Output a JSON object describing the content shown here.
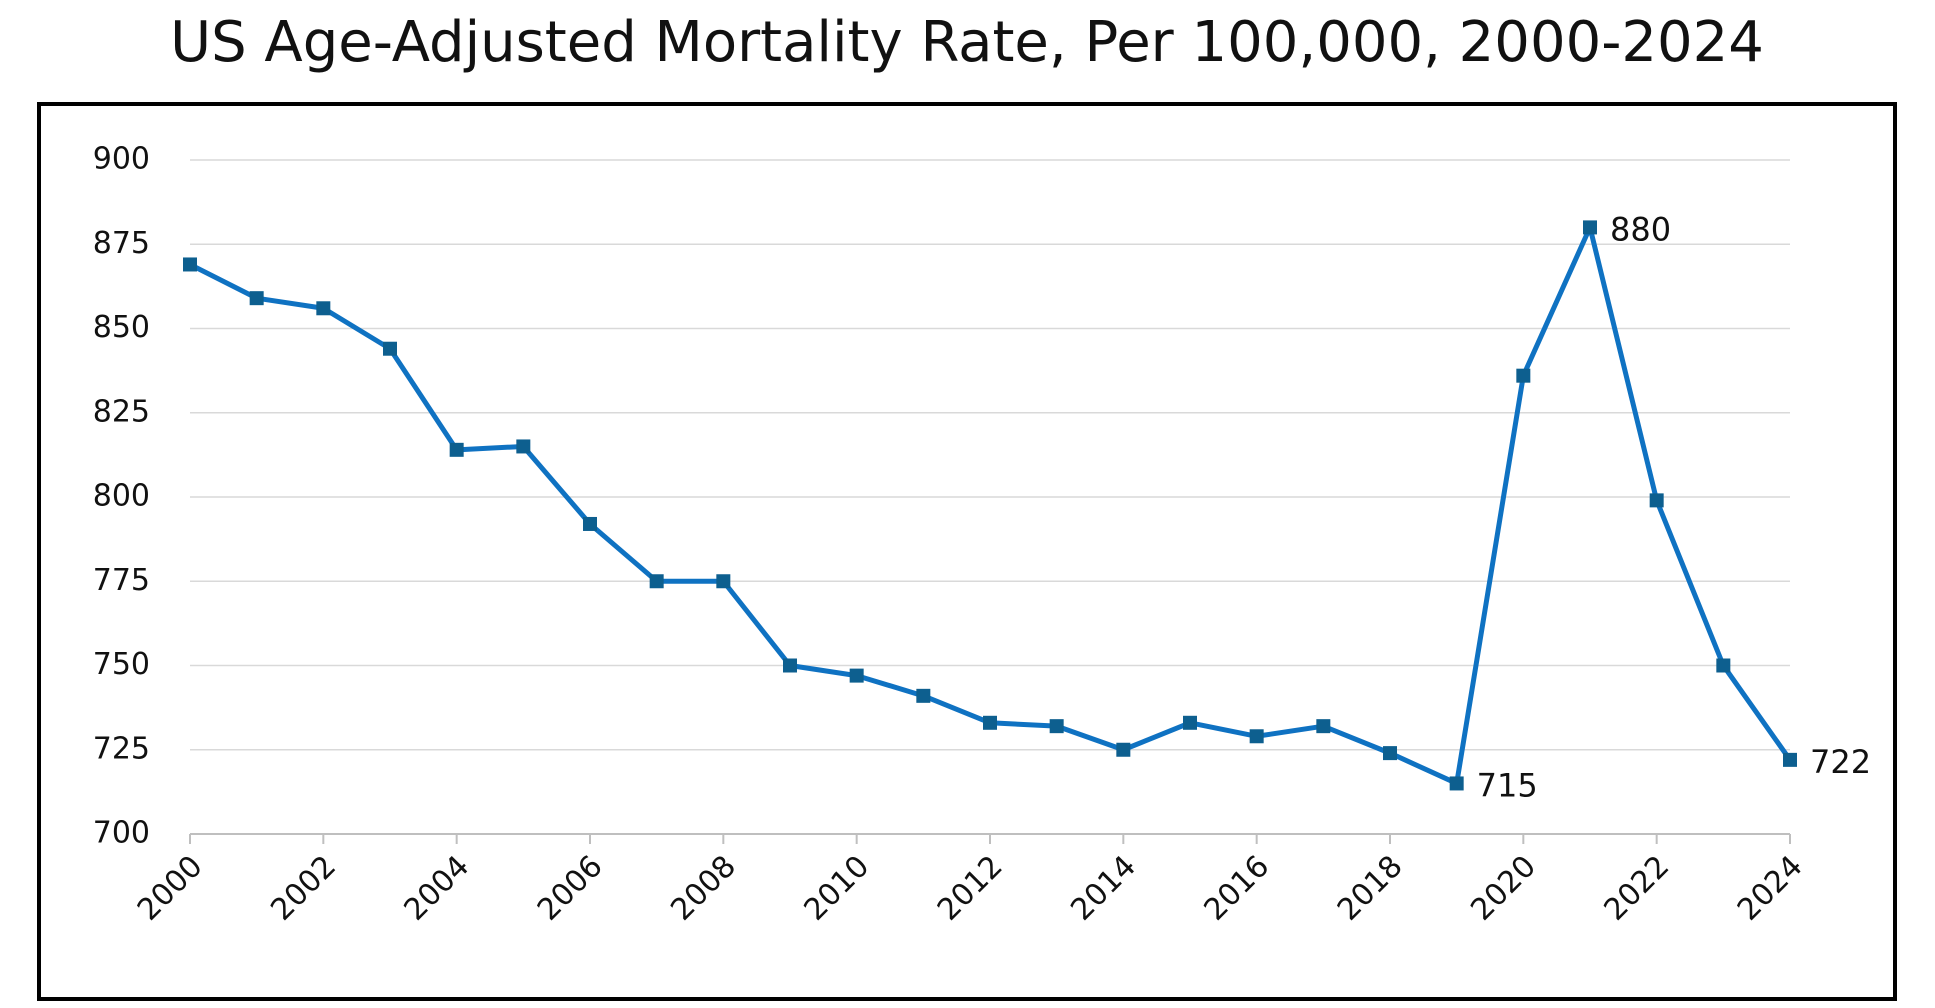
{
  "chart_data": {
    "type": "line",
    "title": "US Age-Adjusted Mortality Rate, Per 100,000, 2000-2024",
    "x": [
      2000,
      2001,
      2002,
      2003,
      2004,
      2005,
      2006,
      2007,
      2008,
      2009,
      2010,
      2011,
      2012,
      2013,
      2014,
      2015,
      2016,
      2017,
      2018,
      2019,
      2020,
      2021,
      2022,
      2023,
      2024
    ],
    "series": [
      {
        "name": "US Age-Adjusted Mortality Rate",
        "color": "#0f72c2",
        "marker_color": "#0d5f8f",
        "values": [
          869,
          859,
          856,
          844,
          814,
          815,
          792,
          775,
          775,
          750,
          747,
          741,
          733,
          732,
          725,
          733,
          729,
          732,
          724,
          715,
          836,
          880,
          799,
          750,
          722
        ],
        "value_labels": [
          null,
          null,
          null,
          null,
          null,
          null,
          null,
          null,
          null,
          null,
          null,
          null,
          null,
          null,
          null,
          null,
          null,
          null,
          null,
          "715",
          null,
          "880",
          null,
          null,
          "722"
        ]
      }
    ],
    "xlim": [
      2000,
      2024
    ],
    "xticks": [
      2000,
      2002,
      2004,
      2006,
      2008,
      2010,
      2012,
      2014,
      2016,
      2018,
      2020,
      2022,
      2024
    ],
    "ylim": [
      700,
      900
    ],
    "yticks": [
      700,
      725,
      750,
      775,
      800,
      825,
      850,
      875,
      900
    ],
    "grid": true
  }
}
